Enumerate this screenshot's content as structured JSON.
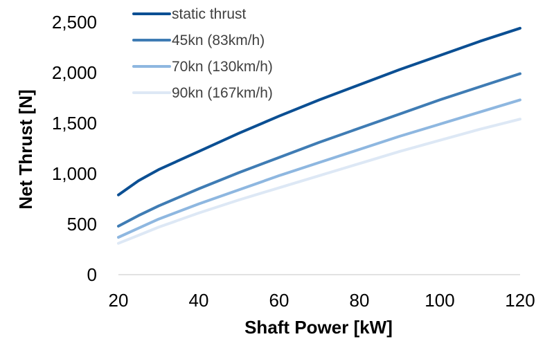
{
  "chart_data": {
    "type": "line",
    "title": "",
    "xlabel": "Shaft Power [kW]",
    "ylabel": "Net Thrust [N]",
    "xlim": [
      20,
      120
    ],
    "ylim": [
      0,
      2500
    ],
    "x_ticks": [
      20,
      40,
      60,
      80,
      100,
      120
    ],
    "x_tick_labels": [
      "20",
      "40",
      "60",
      "80",
      "100",
      "120"
    ],
    "y_ticks": [
      0,
      500,
      1000,
      1500,
      2000,
      2500
    ],
    "y_tick_labels": [
      "0",
      "500",
      "1,000",
      "1,500",
      "2,000",
      "2,500"
    ],
    "grid": false,
    "legend_position": "top-left",
    "x": [
      20,
      25,
      30,
      40,
      50,
      60,
      70,
      80,
      90,
      100,
      110,
      120
    ],
    "series": [
      {
        "name": "static thrust",
        "color": "#0B4F93",
        "values": [
          790,
          930,
          1040,
          1220,
          1400,
          1570,
          1730,
          1880,
          2030,
          2170,
          2310,
          2440
        ]
      },
      {
        "name": "45kn (83km/h)",
        "color": "#3F7CB4",
        "values": [
          480,
          585,
          680,
          850,
          1010,
          1160,
          1310,
          1450,
          1590,
          1730,
          1860,
          1990
        ]
      },
      {
        "name": "70kn (130km/h)",
        "color": "#8EB7E0",
        "values": [
          370,
          460,
          550,
          700,
          840,
          980,
          1110,
          1240,
          1370,
          1490,
          1610,
          1730
        ]
      },
      {
        "name": "90kn (167km/h)",
        "color": "#DDE8F5",
        "values": [
          310,
          390,
          470,
          610,
          740,
          860,
          980,
          1100,
          1220,
          1330,
          1440,
          1540
        ]
      }
    ],
    "colors": {
      "axis": "#D9D9D9",
      "text": "#000000",
      "legend_text": "#404040"
    }
  }
}
